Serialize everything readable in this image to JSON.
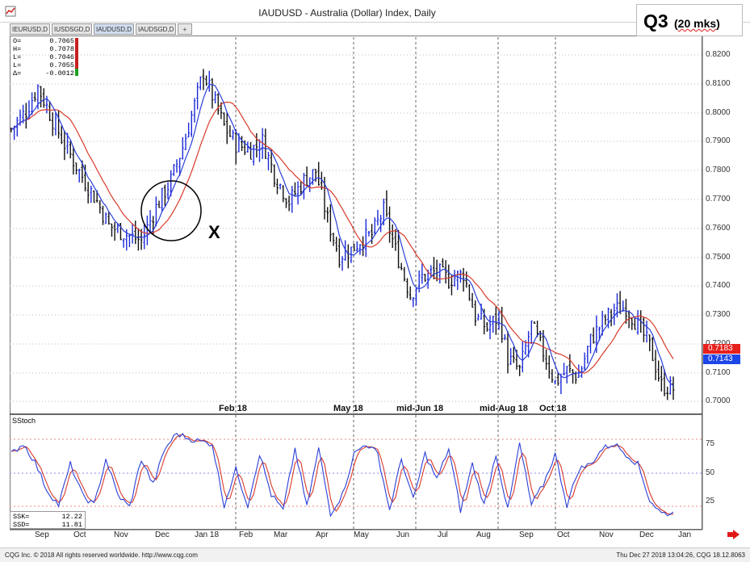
{
  "window": {
    "title": "IAUDUSD - Australia (Dollar) Index, Daily",
    "icon": "cqg-app-icon"
  },
  "overlay": {
    "q_label": "Q3",
    "q_sub_open": "(",
    "q_sub_word": "20 mks",
    "q_sub_close": ")",
    "x_label": "X"
  },
  "tabs": [
    {
      "label": "IEURUSD,D"
    },
    {
      "label": "IUSDSGD,D"
    },
    {
      "label": "IAUDUSD,D"
    },
    {
      "label": "IAUDSGD,D"
    },
    {
      "label": "+"
    }
  ],
  "ohlc": [
    {
      "k": "O=",
      "v": "0.7065"
    },
    {
      "k": "H=",
      "v": "0.7078"
    },
    {
      "k": "L=",
      "v": "0.7046"
    },
    {
      "k": "L=",
      "v": "0.7055"
    },
    {
      "k": "Δ=",
      "v": "-0.0012"
    }
  ],
  "price_axis": [
    "0.8200",
    "0.8100",
    "0.8000",
    "0.7900",
    "0.7800",
    "0.7700",
    "0.7600",
    "0.7500",
    "0.7400",
    "0.7300",
    "0.7200",
    "0.7100",
    "0.7000"
  ],
  "price_tags": {
    "red_value": "0.7183",
    "blue_value": "0.7143",
    "red_color": "#e8201c",
    "blue_color": "#1c46e8"
  },
  "annotations": [
    "Feb 18",
    "May 18",
    "mid-Jun 18",
    "mid-Aug 18",
    "Oct 18"
  ],
  "stoch": {
    "label": "SStoch",
    "levels": [
      "75",
      "50",
      "25"
    ],
    "ssk_label": "SSK=",
    "ssk_value": "12.22",
    "ssd_label": "SSD=",
    "ssd_value": "11.81"
  },
  "months": [
    "Sep",
    "Oct",
    "Nov",
    "Dec",
    "Jan 18",
    "Feb",
    "Mar",
    "Apr",
    "May",
    "Jun",
    "Jul",
    "Aug",
    "Sep",
    "Oct",
    "Nov",
    "Dec",
    "Jan"
  ],
  "footer": {
    "left": "CQG Inc. © 2018 All rights reserved worldwide. http://www.cqg.com",
    "right": "Thu Dec 27 2018 13:04:26, CQG 18.12.8063"
  },
  "colors": {
    "bar_up": "#1c2bd8",
    "bar_down": "#101010",
    "ma_fast": "#2a3fd8",
    "ma_slow": "#d83a2a",
    "stoch_k": "#2a3fd8",
    "stoch_d": "#d83a2a"
  },
  "chart_data": {
    "type": "line",
    "y_range": [
      0.698,
      0.8225
    ],
    "price_path": [
      [
        0,
        0.792
      ],
      [
        5,
        0.798
      ],
      [
        9,
        0.806
      ],
      [
        14,
        0.795
      ],
      [
        18,
        0.787
      ],
      [
        23,
        0.778
      ],
      [
        29,
        0.768
      ],
      [
        33,
        0.76
      ],
      [
        39,
        0.757
      ],
      [
        44,
        0.755
      ],
      [
        49,
        0.766
      ],
      [
        54,
        0.775
      ],
      [
        58,
        0.786
      ],
      [
        62,
        0.8
      ],
      [
        65,
        0.811
      ],
      [
        68,
        0.803
      ],
      [
        72,
        0.793
      ],
      [
        76,
        0.787
      ],
      [
        81,
        0.785
      ],
      [
        85,
        0.788
      ],
      [
        89,
        0.777
      ],
      [
        94,
        0.768
      ],
      [
        99,
        0.775
      ],
      [
        103,
        0.778
      ],
      [
        107,
        0.762
      ],
      [
        111,
        0.75
      ],
      [
        115,
        0.752
      ],
      [
        118,
        0.755
      ],
      [
        122,
        0.757
      ],
      [
        126,
        0.765
      ],
      [
        130,
        0.752
      ],
      [
        135,
        0.737
      ],
      [
        139,
        0.743
      ],
      [
        144,
        0.745
      ],
      [
        148,
        0.742
      ],
      [
        153,
        0.744
      ],
      [
        157,
        0.73
      ],
      [
        161,
        0.726
      ],
      [
        165,
        0.73
      ],
      [
        168,
        0.716
      ],
      [
        172,
        0.712
      ],
      [
        176,
        0.727
      ],
      [
        180,
        0.718
      ],
      [
        184,
        0.708
      ],
      [
        188,
        0.712
      ],
      [
        192,
        0.71
      ],
      [
        196,
        0.722
      ],
      [
        200,
        0.728
      ],
      [
        204,
        0.732
      ],
      [
        208,
        0.733
      ],
      [
        212,
        0.727
      ],
      [
        216,
        0.72
      ],
      [
        220,
        0.707
      ],
      [
        224,
        0.706
      ]
    ],
    "stoch_path": [
      [
        0,
        70
      ],
      [
        4,
        80
      ],
      [
        8,
        62
      ],
      [
        12,
        35
      ],
      [
        16,
        20
      ],
      [
        20,
        60
      ],
      [
        24,
        30
      ],
      [
        28,
        20
      ],
      [
        32,
        65
      ],
      [
        36,
        30
      ],
      [
        40,
        18
      ],
      [
        44,
        65
      ],
      [
        48,
        40
      ],
      [
        52,
        75
      ],
      [
        56,
        90
      ],
      [
        60,
        85
      ],
      [
        64,
        82
      ],
      [
        68,
        80
      ],
      [
        72,
        20
      ],
      [
        76,
        55
      ],
      [
        80,
        20
      ],
      [
        84,
        70
      ],
      [
        88,
        30
      ],
      [
        92,
        15
      ],
      [
        96,
        75
      ],
      [
        100,
        18
      ],
      [
        104,
        75
      ],
      [
        108,
        12
      ],
      [
        112,
        30
      ],
      [
        116,
        70
      ],
      [
        120,
        80
      ],
      [
        124,
        70
      ],
      [
        128,
        15
      ],
      [
        132,
        65
      ],
      [
        136,
        25
      ],
      [
        140,
        70
      ],
      [
        144,
        45
      ],
      [
        148,
        75
      ],
      [
        152,
        15
      ],
      [
        156,
        60
      ],
      [
        160,
        20
      ],
      [
        164,
        70
      ],
      [
        168,
        15
      ],
      [
        172,
        80
      ],
      [
        176,
        20
      ],
      [
        180,
        40
      ],
      [
        184,
        70
      ],
      [
        188,
        20
      ],
      [
        192,
        55
      ],
      [
        196,
        60
      ],
      [
        200,
        75
      ],
      [
        204,
        80
      ],
      [
        208,
        70
      ],
      [
        212,
        60
      ],
      [
        216,
        25
      ],
      [
        220,
        12
      ],
      [
        224,
        12
      ]
    ]
  }
}
